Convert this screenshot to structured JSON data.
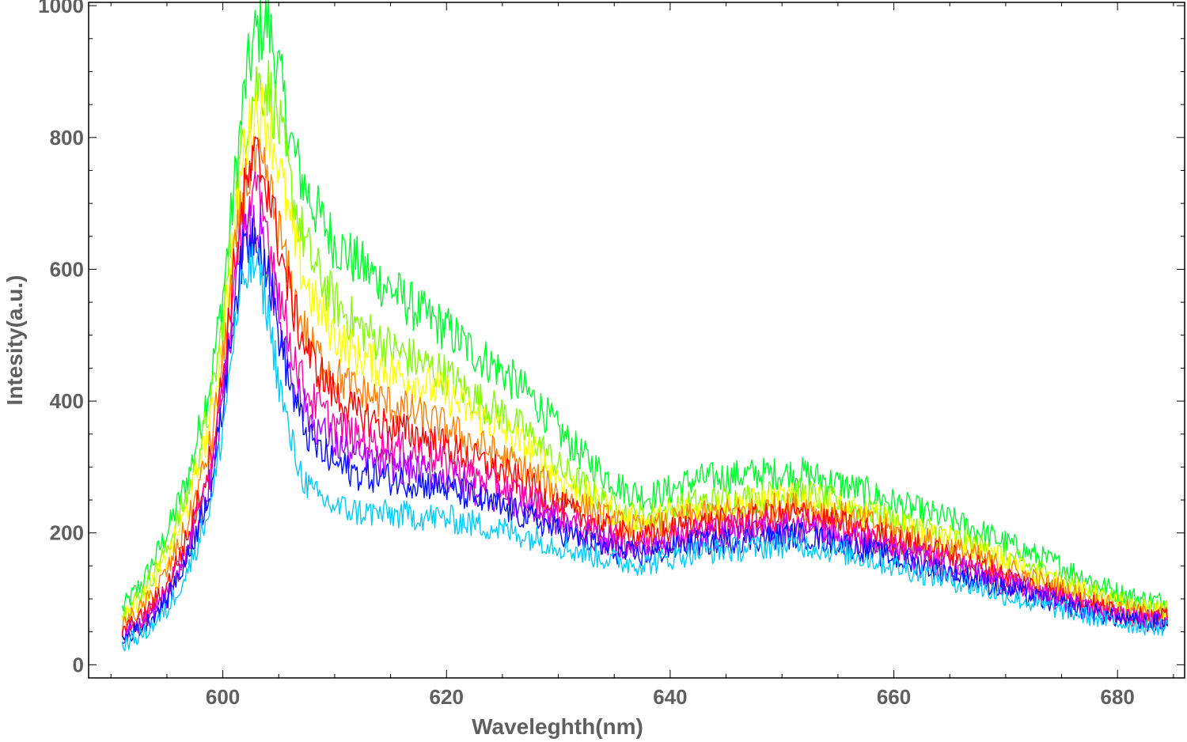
{
  "chart_data": {
    "type": "line",
    "title": "",
    "xlabel": "Waveleghth(nm)",
    "ylabel": "Intesity(a.u.)",
    "xlim": [
      588,
      686
    ],
    "ylim": [
      -20,
      1005
    ],
    "x_ticks": [
      600,
      620,
      640,
      660,
      680
    ],
    "y_ticks": [
      0,
      200,
      400,
      600,
      800,
      1000
    ],
    "x_tick_labels": [
      "600",
      "620",
      "640",
      "660",
      "680"
    ],
    "y_tick_labels": [
      "0",
      "200",
      "400",
      "600",
      "800",
      "1000"
    ],
    "grid": false,
    "legend": "none",
    "noisy": true,
    "x": [
      591,
      593,
      595,
      597,
      599,
      600,
      601,
      602,
      603,
      604,
      605,
      606,
      607,
      608,
      610,
      612,
      615,
      618,
      620,
      622,
      625,
      628,
      630,
      632,
      634,
      636,
      638,
      640,
      642,
      645,
      648,
      650,
      652,
      655,
      658,
      660,
      662,
      665,
      668,
      670,
      672,
      675,
      678,
      680,
      682,
      684.5
    ],
    "series": [
      {
        "color": "#00ff2a",
        "values": [
          85,
          130,
          200,
          290,
          440,
          560,
          720,
          880,
          960,
          975,
          900,
          800,
          740,
          700,
          640,
          610,
          570,
          530,
          510,
          480,
          445,
          400,
          355,
          320,
          290,
          265,
          255,
          265,
          280,
          285,
          290,
          290,
          290,
          275,
          260,
          245,
          235,
          220,
          200,
          185,
          170,
          150,
          125,
          110,
          100,
          95
        ]
      },
      {
        "color": "#7fff00",
        "values": [
          75,
          115,
          175,
          265,
          400,
          520,
          680,
          820,
          880,
          880,
          820,
          730,
          660,
          610,
          550,
          515,
          480,
          455,
          440,
          410,
          380,
          340,
          300,
          275,
          250,
          230,
          225,
          235,
          245,
          250,
          255,
          260,
          260,
          245,
          232,
          220,
          210,
          195,
          178,
          165,
          150,
          130,
          110,
          98,
          90,
          85
        ]
      },
      {
        "color": "#ffff00",
        "values": [
          70,
          105,
          160,
          245,
          375,
          495,
          650,
          790,
          845,
          830,
          760,
          670,
          600,
          555,
          500,
          470,
          445,
          425,
          410,
          385,
          355,
          320,
          285,
          262,
          240,
          222,
          218,
          228,
          238,
          242,
          247,
          252,
          252,
          238,
          225,
          213,
          203,
          188,
          170,
          157,
          143,
          123,
          104,
          92,
          85,
          80
        ]
      },
      {
        "color": "#ff7f00",
        "values": [
          60,
          90,
          140,
          220,
          340,
          460,
          610,
          730,
          760,
          730,
          660,
          580,
          520,
          480,
          440,
          415,
          395,
          375,
          360,
          340,
          315,
          285,
          260,
          242,
          225,
          210,
          205,
          215,
          225,
          230,
          235,
          240,
          240,
          228,
          215,
          203,
          193,
          178,
          160,
          147,
          133,
          115,
          97,
          86,
          79,
          75
        ]
      },
      {
        "color": "#ff0000",
        "values": [
          50,
          75,
          120,
          200,
          320,
          440,
          600,
          720,
          770,
          730,
          640,
          560,
          500,
          460,
          410,
          380,
          360,
          345,
          330,
          315,
          292,
          265,
          242,
          225,
          210,
          197,
          193,
          203,
          212,
          217,
          222,
          228,
          228,
          215,
          202,
          190,
          180,
          165,
          148,
          135,
          122,
          106,
          90,
          80,
          74,
          70
        ]
      },
      {
        "color": "#ff00aa",
        "values": [
          45,
          68,
          110,
          185,
          300,
          420,
          570,
          680,
          710,
          660,
          570,
          490,
          435,
          400,
          365,
          345,
          330,
          318,
          305,
          290,
          270,
          248,
          228,
          212,
          198,
          187,
          185,
          195,
          204,
          208,
          212,
          216,
          216,
          204,
          191,
          180,
          170,
          156,
          140,
          128,
          116,
          101,
          86,
          77,
          71,
          68
        ]
      },
      {
        "color": "#aa00ff",
        "values": [
          42,
          63,
          102,
          175,
          285,
          400,
          550,
          650,
          670,
          620,
          530,
          455,
          400,
          368,
          335,
          315,
          302,
          292,
          282,
          268,
          250,
          230,
          213,
          200,
          187,
          177,
          175,
          185,
          193,
          197,
          201,
          205,
          205,
          194,
          181,
          171,
          161,
          148,
          133,
          122,
          110,
          96,
          82,
          73,
          67,
          64
        ]
      },
      {
        "color": "#0011ff",
        "values": [
          40,
          60,
          98,
          168,
          275,
          390,
          540,
          640,
          660,
          600,
          505,
          425,
          370,
          335,
          305,
          290,
          282,
          275,
          268,
          255,
          238,
          219,
          203,
          190,
          177,
          168,
          166,
          176,
          184,
          188,
          192,
          196,
          196,
          185,
          172,
          162,
          152,
          140,
          125,
          115,
          104,
          91,
          78,
          70,
          64,
          62
        ]
      },
      {
        "color": "#00ccff",
        "values": [
          30,
          48,
          82,
          148,
          248,
          360,
          500,
          590,
          610,
          540,
          430,
          345,
          290,
          260,
          240,
          232,
          228,
          225,
          222,
          215,
          205,
          192,
          181,
          171,
          162,
          155,
          153,
          162,
          170,
          174,
          178,
          182,
          182,
          172,
          160,
          150,
          141,
          129,
          115,
          105,
          95,
          83,
          71,
          64,
          59,
          57
        ]
      }
    ]
  }
}
